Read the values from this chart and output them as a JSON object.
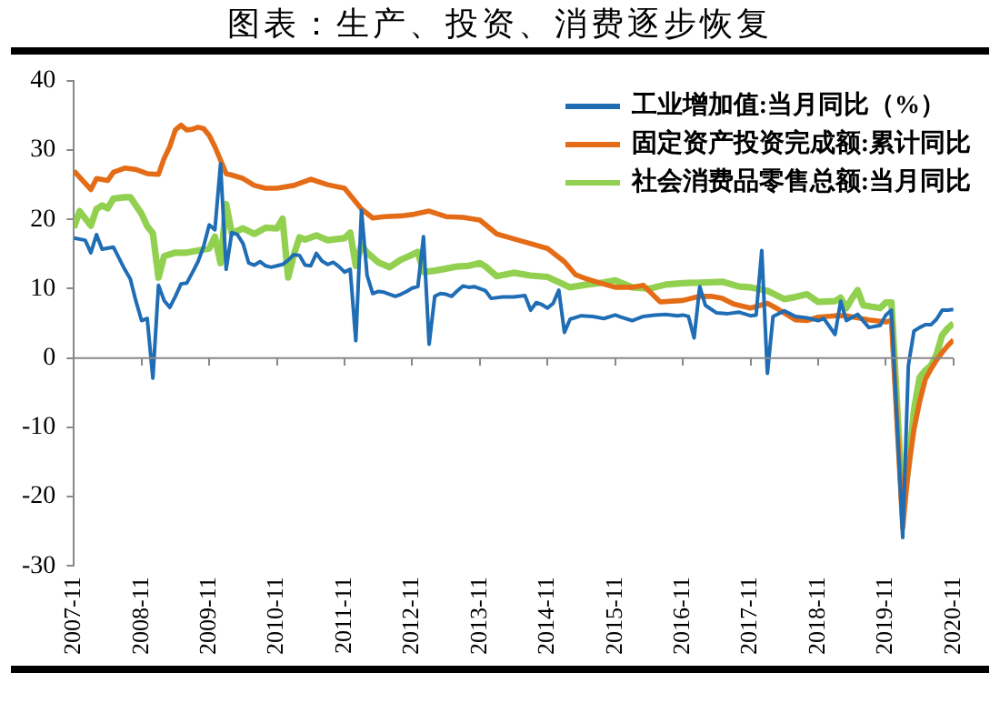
{
  "chart_data": {
    "type": "line",
    "title": "图表：生产、投资、消费逐步恢复",
    "xlim": [
      "2007-11",
      "2020-11"
    ],
    "xticks": [
      "2007-11",
      "2008-11",
      "2009-11",
      "2010-11",
      "2011-11",
      "2012-11",
      "2013-11",
      "2014-11",
      "2015-11",
      "2016-11",
      "2017-11",
      "2018-11",
      "2019-11",
      "2020-11"
    ],
    "ylim": [
      -30,
      40
    ],
    "yticks": [
      -30,
      -20,
      -10,
      0,
      10,
      20,
      30,
      40
    ],
    "grid": false,
    "ref_lines": [
      {
        "axis": "y",
        "value": 0,
        "color": "#888888"
      }
    ],
    "legend": "top right",
    "marker": "none",
    "line_style": "solid",
    "series": [
      {
        "name": "工业增加值:当月同比（%）",
        "color": "#1f6db5",
        "x": [
          "2007-11",
          "2008-01",
          "2008-02",
          "2008-03",
          "2008-04",
          "2008-06",
          "2008-08",
          "2008-09",
          "2008-10",
          "2008-11",
          "2008-12",
          "2009-01",
          "2009-02",
          "2009-03",
          "2009-04",
          "2009-05",
          "2009-06",
          "2009-07",
          "2009-08",
          "2009-09",
          "2009-10",
          "2009-11",
          "2009-12",
          "2010-01",
          "2010-02",
          "2010-03",
          "2010-04",
          "2010-05",
          "2010-06",
          "2010-07",
          "2010-08",
          "2010-09",
          "2010-10",
          "2010-11",
          "2010-12",
          "2011-01",
          "2011-02",
          "2011-03",
          "2011-04",
          "2011-05",
          "2011-06",
          "2011-07",
          "2011-08",
          "2011-09",
          "2011-10",
          "2011-11",
          "2011-12",
          "2012-01",
          "2012-02",
          "2012-03",
          "2012-04",
          "2012-05",
          "2012-06",
          "2012-07",
          "2012-08",
          "2012-09",
          "2012-10",
          "2012-11",
          "2012-12",
          "2013-01",
          "2013-02",
          "2013-03",
          "2013-04",
          "2013-05",
          "2013-06",
          "2013-07",
          "2013-08",
          "2013-09",
          "2013-10",
          "2013-11",
          "2013-12",
          "2014-01",
          "2014-03",
          "2014-05",
          "2014-07",
          "2014-08",
          "2014-09",
          "2014-10",
          "2014-11",
          "2014-12",
          "2015-01",
          "2015-02",
          "2015-03",
          "2015-05",
          "2015-07",
          "2015-09",
          "2015-11",
          "2015-12",
          "2016-02",
          "2016-04",
          "2016-06",
          "2016-08",
          "2016-10",
          "2016-11",
          "2016-12",
          "2017-01",
          "2017-02",
          "2017-03",
          "2017-05",
          "2017-07",
          "2017-09",
          "2017-11",
          "2017-12",
          "2018-01",
          "2018-02",
          "2018-03",
          "2018-05",
          "2018-07",
          "2018-09",
          "2018-11",
          "2018-12",
          "2019-02",
          "2019-03",
          "2019-04",
          "2019-06",
          "2019-08",
          "2019-10",
          "2019-11",
          "2019-12",
          "2020-02",
          "2020-03",
          "2020-04",
          "2020-05",
          "2020-06",
          "2020-07",
          "2020-08",
          "2020-09",
          "2020-10",
          "2020-11"
        ],
        "values": [
          17.3,
          17.0,
          15.2,
          17.8,
          15.7,
          16.0,
          12.8,
          11.4,
          8.2,
          5.4,
          5.7,
          -2.9,
          10.5,
          8.3,
          7.3,
          8.9,
          10.7,
          10.8,
          12.3,
          13.9,
          16.1,
          19.2,
          18.5,
          28.0,
          12.8,
          18.1,
          17.8,
          16.5,
          13.7,
          13.4,
          13.9,
          13.3,
          13.1,
          13.3,
          13.5,
          14.1,
          14.9,
          14.8,
          13.4,
          13.3,
          15.1,
          14.0,
          13.5,
          13.8,
          13.2,
          12.4,
          12.8,
          2.5,
          21.3,
          11.9,
          9.3,
          9.6,
          9.5,
          9.2,
          8.9,
          9.2,
          9.6,
          10.1,
          10.3,
          17.5,
          2.0,
          8.9,
          9.3,
          9.2,
          8.9,
          9.7,
          10.4,
          10.2,
          10.3,
          10.0,
          9.7,
          8.6,
          8.8,
          8.8,
          9.0,
          6.9,
          8.0,
          7.7,
          7.2,
          7.9,
          9.8,
          3.7,
          5.6,
          6.1,
          6.0,
          5.7,
          6.2,
          5.9,
          5.4,
          6.0,
          6.2,
          6.3,
          6.1,
          6.2,
          6.0,
          2.9,
          10.3,
          7.6,
          6.5,
          6.4,
          6.6,
          6.1,
          6.2,
          15.5,
          -2.2,
          6.0,
          6.8,
          6.0,
          5.8,
          5.4,
          5.7,
          3.4,
          8.2,
          5.4,
          6.3,
          4.4,
          4.7,
          6.2,
          6.9,
          -25.9,
          -1.1,
          3.9,
          4.4,
          4.8,
          4.8,
          5.6,
          6.9,
          6.9,
          7.0
        ]
      },
      {
        "name": "固定资产投资完成额:累计同比",
        "color": "#e46c16",
        "x": [
          "2007-11",
          "2008-02",
          "2008-03",
          "2008-05",
          "2008-06",
          "2008-08",
          "2008-10",
          "2008-12",
          "2009-02",
          "2009-03",
          "2009-04",
          "2009-05",
          "2009-06",
          "2009-07",
          "2009-08",
          "2009-09",
          "2009-10",
          "2009-11",
          "2009-12",
          "2010-02",
          "2010-03",
          "2010-05",
          "2010-07",
          "2010-09",
          "2010-11",
          "2011-02",
          "2011-05",
          "2011-08",
          "2011-11",
          "2012-02",
          "2012-04",
          "2012-06",
          "2012-09",
          "2012-11",
          "2013-02",
          "2013-05",
          "2013-08",
          "2013-11",
          "2014-02",
          "2014-05",
          "2014-08",
          "2014-11",
          "2015-02",
          "2015-04",
          "2015-06",
          "2015-08",
          "2015-11",
          "2016-02",
          "2016-04",
          "2016-07",
          "2016-09",
          "2016-11",
          "2017-02",
          "2017-04",
          "2017-06",
          "2017-08",
          "2017-11",
          "2018-02",
          "2018-04",
          "2018-07",
          "2018-09",
          "2018-11",
          "2019-02",
          "2019-04",
          "2019-06",
          "2019-08",
          "2019-11",
          "2019-12",
          "2020-02",
          "2020-03",
          "2020-04",
          "2020-05",
          "2020-06",
          "2020-07",
          "2020-08",
          "2020-09",
          "2020-10",
          "2020-11"
        ],
        "values": [
          27.0,
          24.3,
          25.9,
          25.6,
          26.8,
          27.4,
          27.2,
          26.6,
          26.5,
          28.8,
          30.5,
          32.9,
          33.6,
          32.9,
          33.0,
          33.3,
          33.1,
          32.1,
          30.5,
          26.6,
          26.4,
          25.9,
          24.9,
          24.5,
          24.5,
          24.9,
          25.8,
          25.0,
          24.5,
          21.5,
          20.2,
          20.4,
          20.5,
          20.7,
          21.2,
          20.4,
          20.3,
          19.9,
          17.9,
          17.2,
          16.5,
          15.8,
          13.9,
          12.0,
          11.4,
          10.9,
          10.2,
          10.2,
          10.5,
          8.1,
          8.2,
          8.3,
          8.9,
          8.9,
          8.6,
          7.8,
          7.2,
          7.9,
          7.0,
          5.5,
          5.4,
          5.9,
          6.1,
          6.1,
          5.8,
          5.5,
          5.2,
          5.4,
          -24.5,
          -16.1,
          -10.3,
          -6.3,
          -3.1,
          -1.6,
          -0.3,
          0.8,
          1.8,
          2.6
        ]
      },
      {
        "name": "社会消费品零售总额:当月同比",
        "color": "#92d050",
        "x": [
          "2007-11",
          "2007-12",
          "2008-02",
          "2008-03",
          "2008-04",
          "2008-05",
          "2008-06",
          "2008-08",
          "2008-09",
          "2008-10",
          "2008-11",
          "2008-12",
          "2009-01",
          "2009-02",
          "2009-03",
          "2009-05",
          "2009-07",
          "2009-09",
          "2009-11",
          "2009-12",
          "2010-01",
          "2010-02",
          "2010-03",
          "2010-05",
          "2010-07",
          "2010-09",
          "2010-11",
          "2010-12",
          "2011-01",
          "2011-02",
          "2011-03",
          "2011-04",
          "2011-06",
          "2011-08",
          "2011-10",
          "2011-11",
          "2011-12",
          "2012-01",
          "2012-02",
          "2012-03",
          "2012-05",
          "2012-07",
          "2012-09",
          "2012-11",
          "2012-12",
          "2013-01",
          "2013-03",
          "2013-05",
          "2013-07",
          "2013-09",
          "2013-11",
          "2013-12",
          "2014-02",
          "2014-05",
          "2014-08",
          "2014-11",
          "2015-03",
          "2015-06",
          "2015-09",
          "2015-11",
          "2016-02",
          "2016-05",
          "2016-08",
          "2016-11",
          "2017-03",
          "2017-06",
          "2017-09",
          "2017-11",
          "2018-02",
          "2018-05",
          "2018-07",
          "2018-09",
          "2018-11",
          "2019-02",
          "2019-03",
          "2019-04",
          "2019-05",
          "2019-06",
          "2019-07",
          "2019-10",
          "2019-11",
          "2019-12",
          "2020-02",
          "2020-03",
          "2020-04",
          "2020-05",
          "2020-06",
          "2020-07",
          "2020-08",
          "2020-09",
          "2020-10",
          "2020-11"
        ],
        "values": [
          18.8,
          21.2,
          19.1,
          21.5,
          22.0,
          21.6,
          23.0,
          23.2,
          23.2,
          22.0,
          20.8,
          19.0,
          18.0,
          11.6,
          14.7,
          15.2,
          15.2,
          15.5,
          15.8,
          17.5,
          13.7,
          22.2,
          18.0,
          18.7,
          17.9,
          18.8,
          18.7,
          20.1,
          11.6,
          14.9,
          17.4,
          17.1,
          17.7,
          17.0,
          17.2,
          17.3,
          18.1,
          13.3,
          16.3,
          15.2,
          13.8,
          13.1,
          14.2,
          14.9,
          15.3,
          12.4,
          12.6,
          12.9,
          13.2,
          13.3,
          13.7,
          13.2,
          11.8,
          12.3,
          11.9,
          11.7,
          10.2,
          10.6,
          10.9,
          11.2,
          10.2,
          10.0,
          10.6,
          10.8,
          10.9,
          11.0,
          10.3,
          10.2,
          9.7,
          8.5,
          8.8,
          9.2,
          8.1,
          8.2,
          8.7,
          7.2,
          8.6,
          9.8,
          7.6,
          7.2,
          8.0,
          8.0,
          -21.5,
          -15.8,
          -7.5,
          -2.8,
          -1.8,
          -1.1,
          0.5,
          3.3,
          4.3,
          5.0
        ]
      }
    ]
  }
}
